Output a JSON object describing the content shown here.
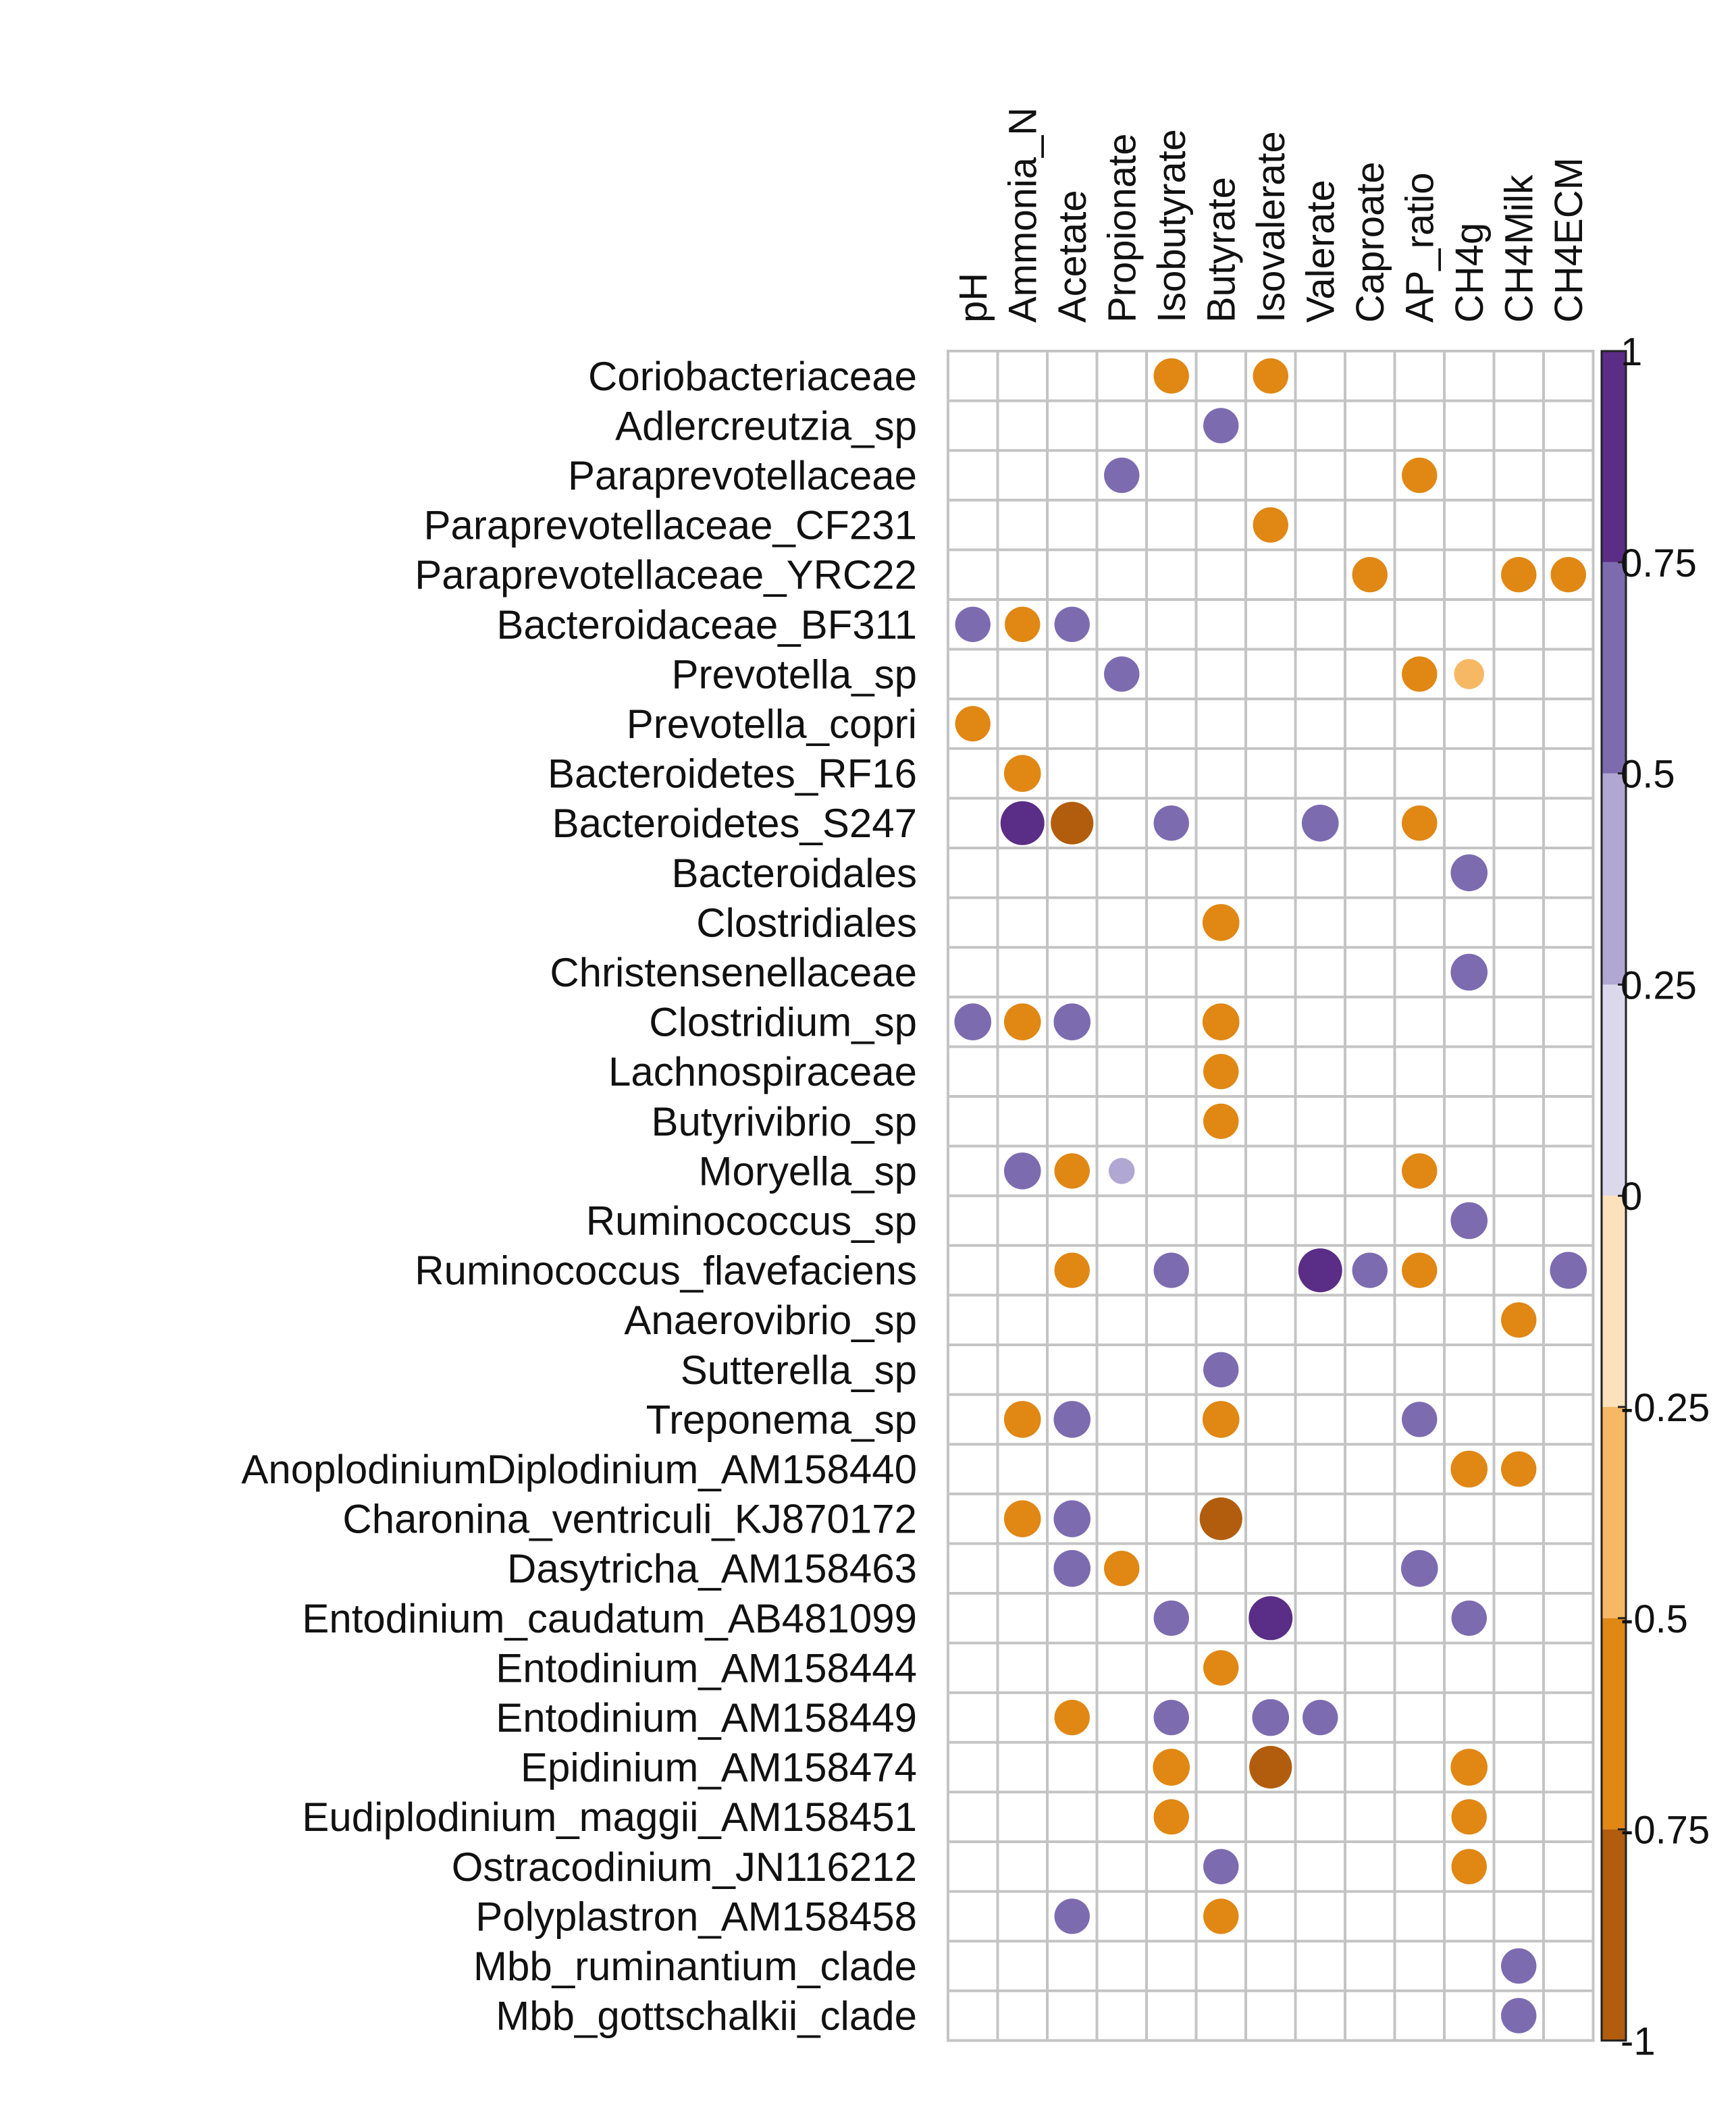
{
  "chart_data": {
    "type": "heatmap",
    "style": "correlation-circles",
    "columns": [
      "pH",
      "Ammonia_N",
      "Acetate",
      "Propionate",
      "Isobutyrate",
      "Butyrate",
      "Isovalerate",
      "Valerate",
      "Caproate",
      "AP_ratio",
      "CH4g",
      "CH4Milk",
      "CH4ECM"
    ],
    "rows": [
      "Coriobacteriaceae",
      "Adlercreutzia_sp",
      "Paraprevotellaceae",
      "Paraprevotellaceae_CF231",
      "Paraprevotellaceae_YRC22",
      "Bacteroidaceae_BF311",
      "Prevotella_sp",
      "Prevotella_copri",
      "Bacteroidetes_RF16",
      "Bacteroidetes_S247",
      "Bacteroidales",
      "Clostridiales",
      "Christensenellaceae",
      "Clostridium_sp",
      "Lachnospiraceae",
      "Butyrivibrio_sp",
      "Moryella_sp",
      "Ruminococcus_sp",
      "Ruminococcus_flavefaciens",
      "Anaerovibrio_sp",
      "Sutterella_sp",
      "Treponema_sp",
      "AnoplodiniumDiplodinium_AM158440",
      "Charonina_ventriculi_KJ870172",
      "Dasytricha_AM158463",
      "Entodinium_caudatum_AB481099",
      "Entodinium_AM158444",
      "Entodinium_AM158449",
      "Epidinium_AM158474",
      "Eudiplodinium_maggii_AM158451",
      "Ostracodinium_JN116212",
      "Polyplastron_AM158458",
      "Mbb_ruminantium_clade",
      "Mbb_gottschalkii_clade"
    ],
    "values": [
      [
        0,
        0,
        0,
        0,
        -0.55,
        0,
        -0.55,
        0,
        0,
        0,
        0,
        0,
        0
      ],
      [
        0,
        0,
        0,
        0,
        0,
        0.55,
        0,
        0,
        0,
        0,
        0,
        0,
        0
      ],
      [
        0,
        0,
        0,
        0.55,
        0,
        0,
        0,
        0,
        0,
        -0.55,
        0,
        0,
        0
      ],
      [
        0,
        0,
        0,
        0,
        0,
        0,
        -0.55,
        0,
        0,
        0,
        0,
        0,
        0
      ],
      [
        0,
        0,
        0,
        0,
        0,
        0,
        0,
        0,
        -0.55,
        0,
        0,
        -0.55,
        -0.55
      ],
      [
        0.55,
        -0.55,
        0.55,
        0,
        0,
        0,
        0,
        0,
        0,
        0,
        0,
        0,
        0
      ],
      [
        0,
        0,
        0,
        0.55,
        0,
        0,
        0,
        0,
        0,
        -0.55,
        -0.4,
        0,
        0
      ],
      [
        -0.55,
        0,
        0,
        0,
        0,
        0,
        0,
        0,
        0,
        0,
        0,
        0,
        0
      ],
      [
        0,
        -0.6,
        0,
        0,
        0,
        0,
        0,
        0,
        0,
        0,
        0,
        0,
        0
      ],
      [
        0,
        0.85,
        -0.8,
        0,
        0.55,
        0,
        0,
        0.6,
        0,
        -0.55,
        0,
        0,
        0
      ],
      [
        0,
        0,
        0,
        0,
        0,
        0,
        0,
        0,
        0,
        0,
        0.6,
        0,
        0
      ],
      [
        0,
        0,
        0,
        0,
        0,
        -0.6,
        0,
        0,
        0,
        0,
        0,
        0,
        0
      ],
      [
        0,
        0,
        0,
        0,
        0,
        0,
        0,
        0,
        0,
        0,
        0.6,
        0,
        0
      ],
      [
        0.6,
        -0.6,
        0.6,
        0,
        0,
        -0.6,
        0,
        0,
        0,
        0,
        0,
        0,
        0
      ],
      [
        0,
        0,
        0,
        0,
        0,
        -0.55,
        0,
        0,
        0,
        0,
        0,
        0,
        0
      ],
      [
        0,
        0,
        0,
        0,
        0,
        -0.55,
        0,
        0,
        0,
        0,
        0,
        0,
        0
      ],
      [
        0,
        0.6,
        -0.55,
        0.3,
        0,
        0,
        0,
        0,
        0,
        -0.55,
        0,
        0,
        0
      ],
      [
        0,
        0,
        0,
        0,
        0,
        0,
        0,
        0,
        0,
        0,
        0.6,
        0,
        0
      ],
      [
        0,
        0,
        -0.55,
        0,
        0.55,
        0,
        0,
        0.85,
        0.55,
        -0.55,
        0,
        0,
        0.6
      ],
      [
        0,
        0,
        0,
        0,
        0,
        0,
        0,
        0,
        0,
        0,
        0,
        -0.55,
        0
      ],
      [
        0,
        0,
        0,
        0,
        0,
        0.55,
        0,
        0,
        0,
        0,
        0,
        0,
        0
      ],
      [
        0,
        -0.6,
        0.6,
        0,
        0,
        -0.6,
        0,
        0,
        0,
        0.55,
        0,
        0,
        0
      ],
      [
        0,
        0,
        0,
        0,
        0,
        0,
        0,
        0,
        0,
        0,
        -0.6,
        -0.55,
        0
      ],
      [
        0,
        -0.6,
        0.6,
        0,
        0,
        -0.8,
        0,
        0,
        0,
        0,
        0,
        0,
        0
      ],
      [
        0,
        0,
        0.6,
        -0.55,
        0,
        0,
        0,
        0,
        0,
        0.6,
        0,
        0,
        0
      ],
      [
        0,
        0,
        0,
        0,
        0.55,
        0,
        0.85,
        0,
        0,
        0,
        0.55,
        0,
        0
      ],
      [
        0,
        0,
        0,
        0,
        0,
        -0.55,
        0,
        0,
        0,
        0,
        0,
        0,
        0
      ],
      [
        0,
        0,
        -0.55,
        0,
        0.55,
        0,
        0.6,
        0.55,
        0,
        0,
        0,
        0,
        0
      ],
      [
        0,
        0,
        0,
        0,
        -0.6,
        0,
        -0.8,
        0,
        0,
        0,
        -0.6,
        0,
        0
      ],
      [
        0,
        0,
        0,
        0,
        -0.55,
        0,
        0,
        0,
        0,
        0,
        -0.55,
        0,
        0
      ],
      [
        0,
        0,
        0,
        0,
        0,
        0.55,
        0,
        0,
        0,
        0,
        -0.55,
        0,
        0
      ],
      [
        0,
        0,
        0.55,
        0,
        0,
        -0.55,
        0,
        0,
        0,
        0,
        0,
        0,
        0
      ],
      [
        0,
        0,
        0,
        0,
        0,
        0,
        0,
        0,
        0,
        0,
        0,
        0.55,
        0
      ],
      [
        0,
        0,
        0,
        0,
        0,
        0,
        0,
        0,
        0,
        0,
        0,
        0.55,
        0
      ]
    ],
    "legend": {
      "position": "right",
      "range": [
        -1,
        1
      ],
      "ticks": [
        1,
        0.75,
        0.5,
        0.25,
        0,
        -0.25,
        -0.5,
        -0.75,
        -1
      ],
      "tick_labels": [
        "1",
        "0.75",
        "0.5",
        "0.25",
        "0",
        "-0.25",
        "-0.5",
        "-0.75",
        "-1"
      ],
      "bins": [
        {
          "from": 0.75,
          "to": 1,
          "color": "#5a2d86"
        },
        {
          "from": 0.5,
          "to": 0.75,
          "color": "#7d6bb0"
        },
        {
          "from": 0.25,
          "to": 0.5,
          "color": "#b0a8d2"
        },
        {
          "from": 0,
          "to": 0.25,
          "color": "#dcd8ec"
        },
        {
          "from": -0.25,
          "to": 0,
          "color": "#fbe1bc"
        },
        {
          "from": -0.5,
          "to": -0.25,
          "color": "#f7b863"
        },
        {
          "from": -0.75,
          "to": -0.5,
          "color": "#e08714"
        },
        {
          "from": -1,
          "to": -0.75,
          "color": "#b25d0d"
        }
      ]
    }
  }
}
